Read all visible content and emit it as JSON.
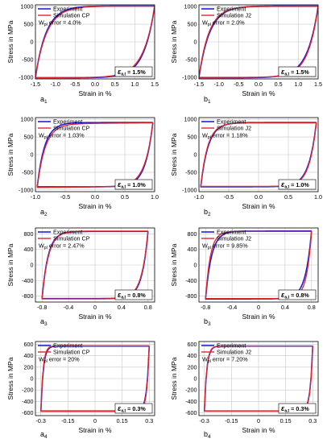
{
  "figure": {
    "colors": {
      "experiment": "#1f1fd6",
      "simulation": "#e0262b",
      "grid": "#c8c8c8",
      "frame": "#000000"
    },
    "common": {
      "xlabel": "Strain in %",
      "ylabel": "Stress in MPa",
      "legend_experiment": "Experiment",
      "grid": true,
      "legend_position": "top-left",
      "amplitude_box_position": "bottom-right"
    }
  },
  "chart_data": [
    {
      "id": "a1",
      "type": "line",
      "panel_label": "a",
      "panel_sub": "1",
      "simulation_name": "Simulation CP",
      "wpl_prefix": "W",
      "wpl_sub": "pl",
      "wpl_text": " error = 4.0%",
      "amp_symbol": "ε",
      "amp_sub": "a,t",
      "amp_value": " = 1.5%",
      "xlim": [
        -1.5,
        1.5
      ],
      "ylim": [
        -1050,
        1050
      ],
      "xticks": [
        -1.5,
        -1.0,
        -0.5,
        0.0,
        0.5,
        1.0,
        1.5
      ],
      "xticklabels": [
        "-1.5",
        "-1.0",
        "-0.5",
        "0.0",
        "0.5",
        "1.0",
        "1.5"
      ],
      "yticks": [
        -1000,
        -500,
        0,
        500,
        1000
      ],
      "yticklabels": [
        "-1000",
        "-500",
        "0",
        "500",
        "1000"
      ],
      "series": [
        {
          "name": "Experiment",
          "tip": [
            1.5,
            1010
          ],
          "sigma_y": 450,
          "hardening": 350,
          "shape": 5.0,
          "bottom_offset": 0
        },
        {
          "name": "Simulation CP",
          "tip": [
            1.5,
            1000
          ],
          "sigma_y": 490,
          "hardening": 320,
          "shape": 4.7,
          "bottom_offset": 0
        }
      ]
    },
    {
      "id": "b1",
      "type": "line",
      "panel_label": "b",
      "panel_sub": "1",
      "simulation_name": "Simulation J2",
      "wpl_prefix": "W",
      "wpl_sub": "pl",
      "wpl_text": " error = 2.0%",
      "amp_symbol": "ε",
      "amp_sub": "a,t",
      "amp_value": " = 1.5%",
      "xlim": [
        -1.5,
        1.5
      ],
      "ylim": [
        -1050,
        1050
      ],
      "xticks": [
        -1.5,
        -1.0,
        -0.5,
        0.0,
        0.5,
        1.0,
        1.5
      ],
      "xticklabels": [
        "-1.5",
        "-1.0",
        "-0.5",
        "0.0",
        "0.5",
        "1.0",
        "1.5"
      ],
      "yticks": [
        -1000,
        -500,
        0,
        500,
        1000
      ],
      "yticklabels": [
        "-1000",
        "-500",
        "0",
        "500",
        "1000"
      ],
      "series": [
        {
          "name": "Experiment",
          "tip": [
            1.5,
            1010
          ],
          "sigma_y": 450,
          "hardening": 350,
          "shape": 5.0,
          "bottom_offset": 0
        },
        {
          "name": "Simulation J2",
          "tip": [
            1.5,
            1000
          ],
          "sigma_y": 420,
          "hardening": 360,
          "shape": 5.4,
          "bottom_offset": 0
        }
      ]
    },
    {
      "id": "a2",
      "type": "line",
      "panel_label": "a",
      "panel_sub": "2",
      "simulation_name": "Simulation CP",
      "wpl_prefix": "W",
      "wpl_sub": "pl",
      "wpl_text": " error = 1.03%",
      "amp_symbol": "ε",
      "amp_sub": "a,t",
      "amp_value": " = 1.0%",
      "xlim": [
        -1.0,
        1.0
      ],
      "ylim": [
        -1050,
        1050
      ],
      "xticks": [
        -1.0,
        -0.5,
        0.0,
        0.5,
        1.0
      ],
      "xticklabels": [
        "-1.0",
        "-0.5",
        "0.0",
        "0.5",
        "1.0"
      ],
      "yticks": [
        -1000,
        -500,
        0,
        500,
        1000
      ],
      "yticklabels": [
        "-1000",
        "-500",
        "0",
        "500",
        "1000"
      ],
      "series": [
        {
          "name": "Experiment",
          "tip": [
            0.97,
            910
          ],
          "sigma_y": 420,
          "hardening": 250,
          "shape": 7.0,
          "bottom_offset": 0
        },
        {
          "name": "Simulation CP",
          "tip": [
            0.97,
            900
          ],
          "sigma_y": 450,
          "hardening": 230,
          "shape": 6.5,
          "bottom_offset": -30
        }
      ]
    },
    {
      "id": "b2",
      "type": "line",
      "panel_label": "b",
      "panel_sub": "2",
      "simulation_name": "Simulation J2",
      "wpl_prefix": "W",
      "wpl_sub": "pl",
      "wpl_text": " error = 1.18%",
      "amp_symbol": "ε",
      "amp_sub": "a,t",
      "amp_value": " = 1.0%",
      "xlim": [
        -1.0,
        1.0
      ],
      "ylim": [
        -1050,
        1050
      ],
      "xticks": [
        -1.0,
        -0.5,
        0.0,
        0.5,
        1.0
      ],
      "xticklabels": [
        "-1.0",
        "-0.5",
        "0.0",
        "0.5",
        "1.0"
      ],
      "yticks": [
        -1000,
        -500,
        0,
        500,
        1000
      ],
      "yticklabels": [
        "-1000",
        "-500",
        "0",
        "500",
        "1000"
      ],
      "series": [
        {
          "name": "Experiment",
          "tip": [
            0.97,
            910
          ],
          "sigma_y": 420,
          "hardening": 250,
          "shape": 7.0,
          "bottom_offset": 0
        },
        {
          "name": "Simulation J2",
          "tip": [
            0.97,
            900
          ],
          "sigma_y": 400,
          "hardening": 270,
          "shape": 7.5,
          "bottom_offset": 0
        }
      ]
    },
    {
      "id": "a3",
      "type": "line",
      "panel_label": "a",
      "panel_sub": "3",
      "simulation_name": "Simulation CP",
      "wpl_prefix": "W",
      "wpl_sub": "pl",
      "wpl_text": " error = 2.47%",
      "amp_symbol": "ε",
      "amp_sub": "a,t",
      "amp_value": " = 0.8%",
      "xlim": [
        -0.9,
        0.9
      ],
      "ylim": [
        -950,
        950
      ],
      "xticks": [
        -0.8,
        -0.4,
        0.0,
        0.4,
        0.8
      ],
      "xticklabels": [
        "-0.8",
        "-0.4",
        "0",
        "0.4",
        "0.8"
      ],
      "yticks": [
        -800,
        -400,
        0,
        400,
        800
      ],
      "yticklabels": [
        "-800",
        "-400",
        "0",
        "400",
        "800"
      ],
      "series": [
        {
          "name": "Experiment",
          "tip": [
            0.8,
            860
          ],
          "sigma_y": 380,
          "hardening": 230,
          "shape": 8.0,
          "bottom_offset": 0
        },
        {
          "name": "Simulation CP",
          "tip": [
            0.8,
            870
          ],
          "sigma_y": 440,
          "hardening": 200,
          "shape": 7.5,
          "bottom_offset": 0
        }
      ]
    },
    {
      "id": "b3",
      "type": "line",
      "panel_label": "b",
      "panel_sub": "3",
      "simulation_name": "Simulation J2",
      "wpl_prefix": "W",
      "wpl_sub": "pl",
      "wpl_text": " error = 9.85%",
      "amp_symbol": "ε",
      "amp_sub": "a,t",
      "amp_value": " = 0.8%",
      "xlim": [
        -0.9,
        0.9
      ],
      "ylim": [
        -950,
        950
      ],
      "xticks": [
        -0.8,
        -0.4,
        0.0,
        0.4,
        0.8
      ],
      "xticklabels": [
        "-0.8",
        "-0.4",
        "0",
        "0.4",
        "0.8"
      ],
      "yticks": [
        -800,
        -400,
        0,
        400,
        800
      ],
      "yticklabels": [
        "-800",
        "-400",
        "0",
        "400",
        "800"
      ],
      "series": [
        {
          "name": "Experiment",
          "tip": [
            0.8,
            870
          ],
          "sigma_y": 380,
          "hardening": 240,
          "shape": 8.0,
          "bottom_offset": 0
        },
        {
          "name": "Simulation J2",
          "tip": [
            0.8,
            860
          ],
          "sigma_y": 320,
          "hardening": 260,
          "shape": 10.0,
          "bottom_offset": 0
        }
      ]
    },
    {
      "id": "a4",
      "type": "line",
      "panel_label": "a",
      "panel_sub": "4",
      "simulation_name": "Simulation CP",
      "wpl_prefix": "W",
      "wpl_sub": "pl",
      "wpl_text": " error = 20%",
      "amp_symbol": "ε",
      "amp_sub": "a,t",
      "amp_value": " = 0.3%",
      "xlim": [
        -0.33,
        0.33
      ],
      "ylim": [
        -650,
        650
      ],
      "xticks": [
        -0.3,
        -0.15,
        0.0,
        0.15,
        0.3
      ],
      "xticklabels": [
        "-0.3",
        "-0.15",
        "0",
        "0.15",
        "0.3"
      ],
      "yticks": [
        -600,
        -400,
        -200,
        0,
        200,
        400,
        600
      ],
      "yticklabels": [
        "-600",
        "-400",
        "-200",
        "0",
        "200",
        "400",
        "600"
      ],
      "series": [
        {
          "name": "Experiment",
          "tip": [
            0.3,
            570
          ],
          "sigma_y": 420,
          "hardening": 600,
          "shape": 20.0,
          "bottom_offset": 0
        },
        {
          "name": "Simulation CP",
          "tip": [
            0.3,
            575
          ],
          "sigma_y": 460,
          "hardening": 500,
          "shape": 22.0,
          "bottom_offset": 0
        }
      ]
    },
    {
      "id": "b4",
      "type": "line",
      "panel_label": "b",
      "panel_sub": "4",
      "simulation_name": "Simulation J2",
      "wpl_prefix": "W",
      "wpl_sub": "pl",
      "wpl_text": " error = 7.20%",
      "amp_symbol": "ε",
      "amp_sub": "a,t",
      "amp_value": " = 0.3%",
      "xlim": [
        -0.33,
        0.33
      ],
      "ylim": [
        -650,
        650
      ],
      "xticks": [
        -0.3,
        -0.15,
        0.0,
        0.15,
        0.3
      ],
      "xticklabels": [
        "-0.3",
        "-0.15",
        "0",
        "0.15",
        "0.3"
      ],
      "yticks": [
        -600,
        -400,
        -200,
        0,
        200,
        400,
        600
      ],
      "yticklabels": [
        "-600",
        "-400",
        "-200",
        "0",
        "200",
        "400",
        "600"
      ],
      "series": [
        {
          "name": "Experiment",
          "tip": [
            0.3,
            570
          ],
          "sigma_y": 420,
          "hardening": 600,
          "shape": 20.0,
          "bottom_offset": 0
        },
        {
          "name": "Simulation J2",
          "tip": [
            0.3,
            570
          ],
          "sigma_y": 400,
          "hardening": 620,
          "shape": 21.0,
          "bottom_offset": 0
        }
      ]
    }
  ]
}
